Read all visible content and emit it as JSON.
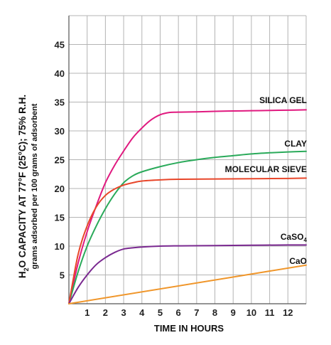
{
  "chart_data": {
    "type": "line",
    "title": "",
    "xlabel": "TIME IN HOURS",
    "ylabel": {
      "main_prefix": "H",
      "main_sub": "2",
      "main_suffix": "O CAPACITY AT 77°F (25°C); 75% R.H.",
      "secondary": "grams adsorbed per 100 grams of adsorbent"
    },
    "xlim": [
      0,
      13
    ],
    "ylim": [
      0,
      50
    ],
    "x_ticks": [
      1,
      2,
      3,
      4,
      5,
      6,
      7,
      8,
      9,
      10,
      11,
      12
    ],
    "y_ticks": [
      5,
      10,
      15,
      20,
      25,
      30,
      35,
      40,
      45
    ],
    "grid": true,
    "series": [
      {
        "name": "SILICA GEL",
        "name_sub": "",
        "name_suffix": "",
        "color": "#e0197f",
        "points": [
          [
            0,
            0
          ],
          [
            0.5,
            7
          ],
          [
            1,
            12.5
          ],
          [
            1.5,
            17
          ],
          [
            2,
            21
          ],
          [
            2.5,
            24
          ],
          [
            3,
            26.5
          ],
          [
            3.5,
            28.8
          ],
          [
            4,
            30.5
          ],
          [
            4.5,
            31.9
          ],
          [
            5,
            32.8
          ],
          [
            5.5,
            33.2
          ],
          [
            6,
            33.25
          ],
          [
            7,
            33.3
          ],
          [
            8,
            33.4
          ],
          [
            9,
            33.45
          ],
          [
            10,
            33.5
          ],
          [
            11,
            33.55
          ],
          [
            12,
            33.6
          ],
          [
            13,
            33.65
          ]
        ]
      },
      {
        "name": "CLAY",
        "name_sub": "",
        "name_suffix": "",
        "color": "#2aaa5a",
        "points": [
          [
            0,
            0
          ],
          [
            0.5,
            5.5
          ],
          [
            1,
            10
          ],
          [
            1.5,
            13.5
          ],
          [
            2,
            16.5
          ],
          [
            2.5,
            19
          ],
          [
            3,
            21
          ],
          [
            3.5,
            22.2
          ],
          [
            4,
            22.9
          ],
          [
            5,
            23.8
          ],
          [
            6,
            24.5
          ],
          [
            7,
            25
          ],
          [
            8,
            25.4
          ],
          [
            9,
            25.7
          ],
          [
            10,
            26
          ],
          [
            11,
            26.2
          ],
          [
            12,
            26.35
          ],
          [
            13,
            26.45
          ]
        ]
      },
      {
        "name": "MOLECULAR SIEVE",
        "name_sub": "",
        "name_suffix": "",
        "color": "#e8462a",
        "points": [
          [
            0,
            0
          ],
          [
            0.5,
            8.5
          ],
          [
            1,
            13.5
          ],
          [
            1.5,
            16.8
          ],
          [
            2,
            18.8
          ],
          [
            2.5,
            19.9
          ],
          [
            3,
            20.6
          ],
          [
            3.5,
            21
          ],
          [
            4,
            21.3
          ],
          [
            5,
            21.5
          ],
          [
            6,
            21.6
          ],
          [
            8,
            21.65
          ],
          [
            10,
            21.7
          ],
          [
            12,
            21.75
          ],
          [
            13,
            21.8
          ]
        ]
      },
      {
        "name": "CaSO",
        "name_sub": "4",
        "name_suffix": "",
        "color": "#7a2990",
        "points": [
          [
            0,
            0
          ],
          [
            0.5,
            2.8
          ],
          [
            1,
            5
          ],
          [
            1.5,
            6.8
          ],
          [
            2,
            8
          ],
          [
            2.5,
            8.9
          ],
          [
            3,
            9.5
          ],
          [
            3.5,
            9.7
          ],
          [
            4,
            9.85
          ],
          [
            5,
            10
          ],
          [
            6,
            10.05
          ],
          [
            8,
            10.1
          ],
          [
            10,
            10.15
          ],
          [
            12,
            10.2
          ],
          [
            13,
            10.2
          ]
        ]
      },
      {
        "name": "CaO",
        "name_sub": "",
        "name_suffix": "",
        "color": "#f0962a",
        "points": [
          [
            0,
            0
          ],
          [
            13,
            6.7
          ]
        ]
      }
    ]
  }
}
